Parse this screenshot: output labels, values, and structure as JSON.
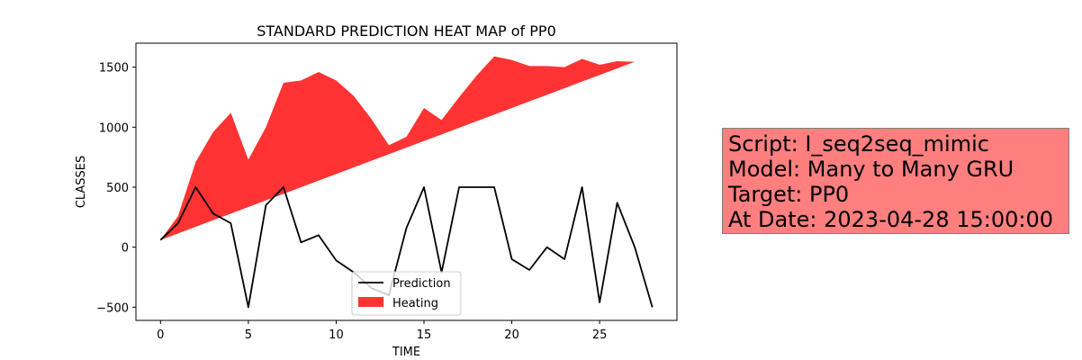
{
  "chart_data": {
    "type": "line",
    "title": "STANDARD PREDICTION HEAT MAP of PP0",
    "xlabel": "TIME",
    "ylabel": "CLASSES",
    "xlim": [
      -1.4,
      29.4
    ],
    "ylim": [
      -610,
      1700
    ],
    "xticks": [
      0,
      5,
      10,
      15,
      20,
      25
    ],
    "yticks": [
      -500,
      0,
      500,
      1000,
      1500
    ],
    "x": [
      0,
      1,
      2,
      3,
      4,
      5,
      6,
      7,
      8,
      9,
      10,
      11,
      12,
      13,
      14,
      15,
      16,
      17,
      18,
      19,
      20,
      21,
      22,
      23,
      24,
      25,
      26,
      27,
      28
    ],
    "series": [
      {
        "name": "Prediction",
        "type": "line",
        "color": "#000000",
        "values": [
          60,
          200,
          500,
          280,
          200,
          -500,
          350,
          500,
          40,
          100,
          -110,
          -210,
          -340,
          -400,
          160,
          500,
          -210,
          500,
          500,
          500,
          -100,
          -190,
          0,
          -100,
          500,
          -460,
          370,
          0,
          -500
        ]
      },
      {
        "name": "Heating",
        "type": "area",
        "color": "#ff0000",
        "opacity": 0.8,
        "upper": [
          60,
          260,
          710,
          960,
          1120,
          730,
          1000,
          1370,
          1390,
          1460,
          1390,
          1260,
          1070,
          850,
          920,
          1160,
          1060,
          1250,
          1430,
          1590,
          1560,
          1510,
          1510,
          1500,
          1570,
          1520,
          1550,
          1545,
          1545
        ],
        "lower": [
          60,
          115,
          170,
          225,
          280,
          335,
          390,
          445,
          500,
          555,
          610,
          665,
          720,
          775,
          830,
          885,
          940,
          995,
          1050,
          1105,
          1160,
          1215,
          1270,
          1325,
          1380,
          1435,
          1490,
          1545,
          1545
        ]
      }
    ],
    "grid": false,
    "legend_position": "lower-center"
  },
  "info_box": {
    "lines": [
      "Script: I_seq2seq_mimic",
      "Model: Many to Many GRU",
      "Target: PP0",
      "At Date: 2023-04-28 15:00:00"
    ],
    "background": "#ff7f7f",
    "border": "#808080"
  }
}
